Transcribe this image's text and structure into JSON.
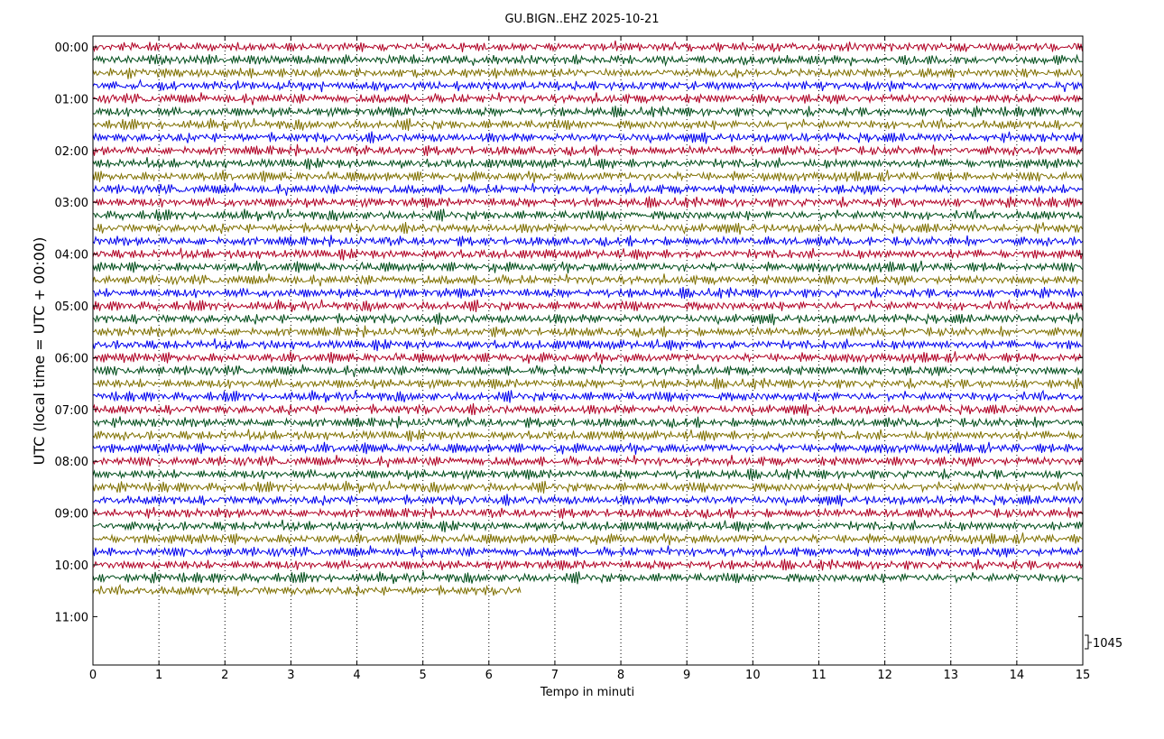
{
  "chart_data": {
    "type": "line",
    "title": "GU.BIGN..EHZ 2025-10-21",
    "xlabel": "Tempo in minuti",
    "ylabel": "UTC (local time = UTC + 00:00)",
    "xlim": [
      0,
      15
    ],
    "x_ticks": [
      "0",
      "1",
      "2",
      "3",
      "4",
      "5",
      "6",
      "7",
      "8",
      "9",
      "10",
      "11",
      "12",
      "13",
      "14",
      "15"
    ],
    "y_tick_labels": [
      "00:00",
      "01:00",
      "02:00",
      "03:00",
      "04:00",
      "05:00",
      "06:00",
      "07:00",
      "08:00",
      "09:00",
      "10:00",
      "11:00"
    ],
    "grid": "vertical dotted lines at each minute",
    "trace_colors": [
      "#b00024",
      "#004d1a",
      "#7f7000",
      "#0000ee"
    ],
    "trace_count": 43,
    "last_trace_end_minute": 6.5,
    "scale_label": "1045"
  }
}
